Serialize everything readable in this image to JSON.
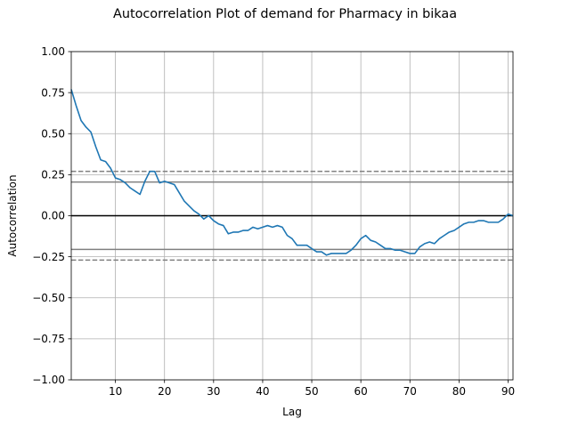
{
  "chart_data": {
    "type": "line",
    "title": "Autocorrelation Plot of demand for Pharmacy in bikaa",
    "xlabel": "Lag",
    "ylabel": "Autocorrelation",
    "xlim": [
      1,
      91
    ],
    "ylim": [
      -1.0,
      1.0
    ],
    "xticks": [
      "10",
      "20",
      "30",
      "40",
      "50",
      "60",
      "70",
      "80",
      "90"
    ],
    "yticks": [
      "1.00",
      "0.75",
      "0.50",
      "0.25",
      "0.00",
      "−0.25",
      "−0.50",
      "−0.75",
      "−1.00"
    ],
    "grid": true,
    "reference_lines": {
      "zero": 0.0,
      "solid": [
        0.205,
        -0.205
      ],
      "dashed": [
        0.27,
        -0.27
      ]
    },
    "colors": {
      "series": "#1f77b4",
      "grid": "#b0b0b0",
      "confidence": "#808080",
      "zero": "#000000"
    },
    "x": [
      1,
      2,
      3,
      4,
      5,
      6,
      7,
      8,
      9,
      10,
      11,
      12,
      13,
      14,
      15,
      16,
      17,
      18,
      19,
      20,
      21,
      22,
      23,
      24,
      25,
      26,
      27,
      28,
      29,
      30,
      31,
      32,
      33,
      34,
      35,
      36,
      37,
      38,
      39,
      40,
      41,
      42,
      43,
      44,
      45,
      46,
      47,
      48,
      49,
      50,
      51,
      52,
      53,
      54,
      55,
      56,
      57,
      58,
      59,
      60,
      61,
      62,
      63,
      64,
      65,
      66,
      67,
      68,
      69,
      70,
      71,
      72,
      73,
      74,
      75,
      76,
      77,
      78,
      79,
      80,
      81,
      82,
      83,
      84,
      85,
      86,
      87,
      88,
      89,
      90,
      91
    ],
    "values": [
      0.77,
      0.67,
      0.58,
      0.54,
      0.51,
      0.42,
      0.34,
      0.33,
      0.29,
      0.23,
      0.22,
      0.2,
      0.17,
      0.15,
      0.13,
      0.21,
      0.27,
      0.27,
      0.2,
      0.21,
      0.2,
      0.19,
      0.14,
      0.09,
      0.06,
      0.03,
      0.01,
      -0.02,
      0.0,
      -0.03,
      -0.05,
      -0.06,
      -0.11,
      -0.1,
      -0.1,
      -0.09,
      -0.09,
      -0.07,
      -0.08,
      -0.07,
      -0.06,
      -0.07,
      -0.06,
      -0.07,
      -0.12,
      -0.14,
      -0.18,
      -0.18,
      -0.18,
      -0.2,
      -0.22,
      -0.22,
      -0.24,
      -0.23,
      -0.23,
      -0.23,
      -0.23,
      -0.21,
      -0.18,
      -0.14,
      -0.12,
      -0.15,
      -0.16,
      -0.18,
      -0.2,
      -0.2,
      -0.21,
      -0.21,
      -0.22,
      -0.23,
      -0.23,
      -0.19,
      -0.17,
      -0.16,
      -0.17,
      -0.14,
      -0.12,
      -0.1,
      -0.09,
      -0.07,
      -0.05,
      -0.04,
      -0.04,
      -0.03,
      -0.03,
      -0.04,
      -0.04,
      -0.04,
      -0.02,
      0.01,
      0.0
    ]
  }
}
